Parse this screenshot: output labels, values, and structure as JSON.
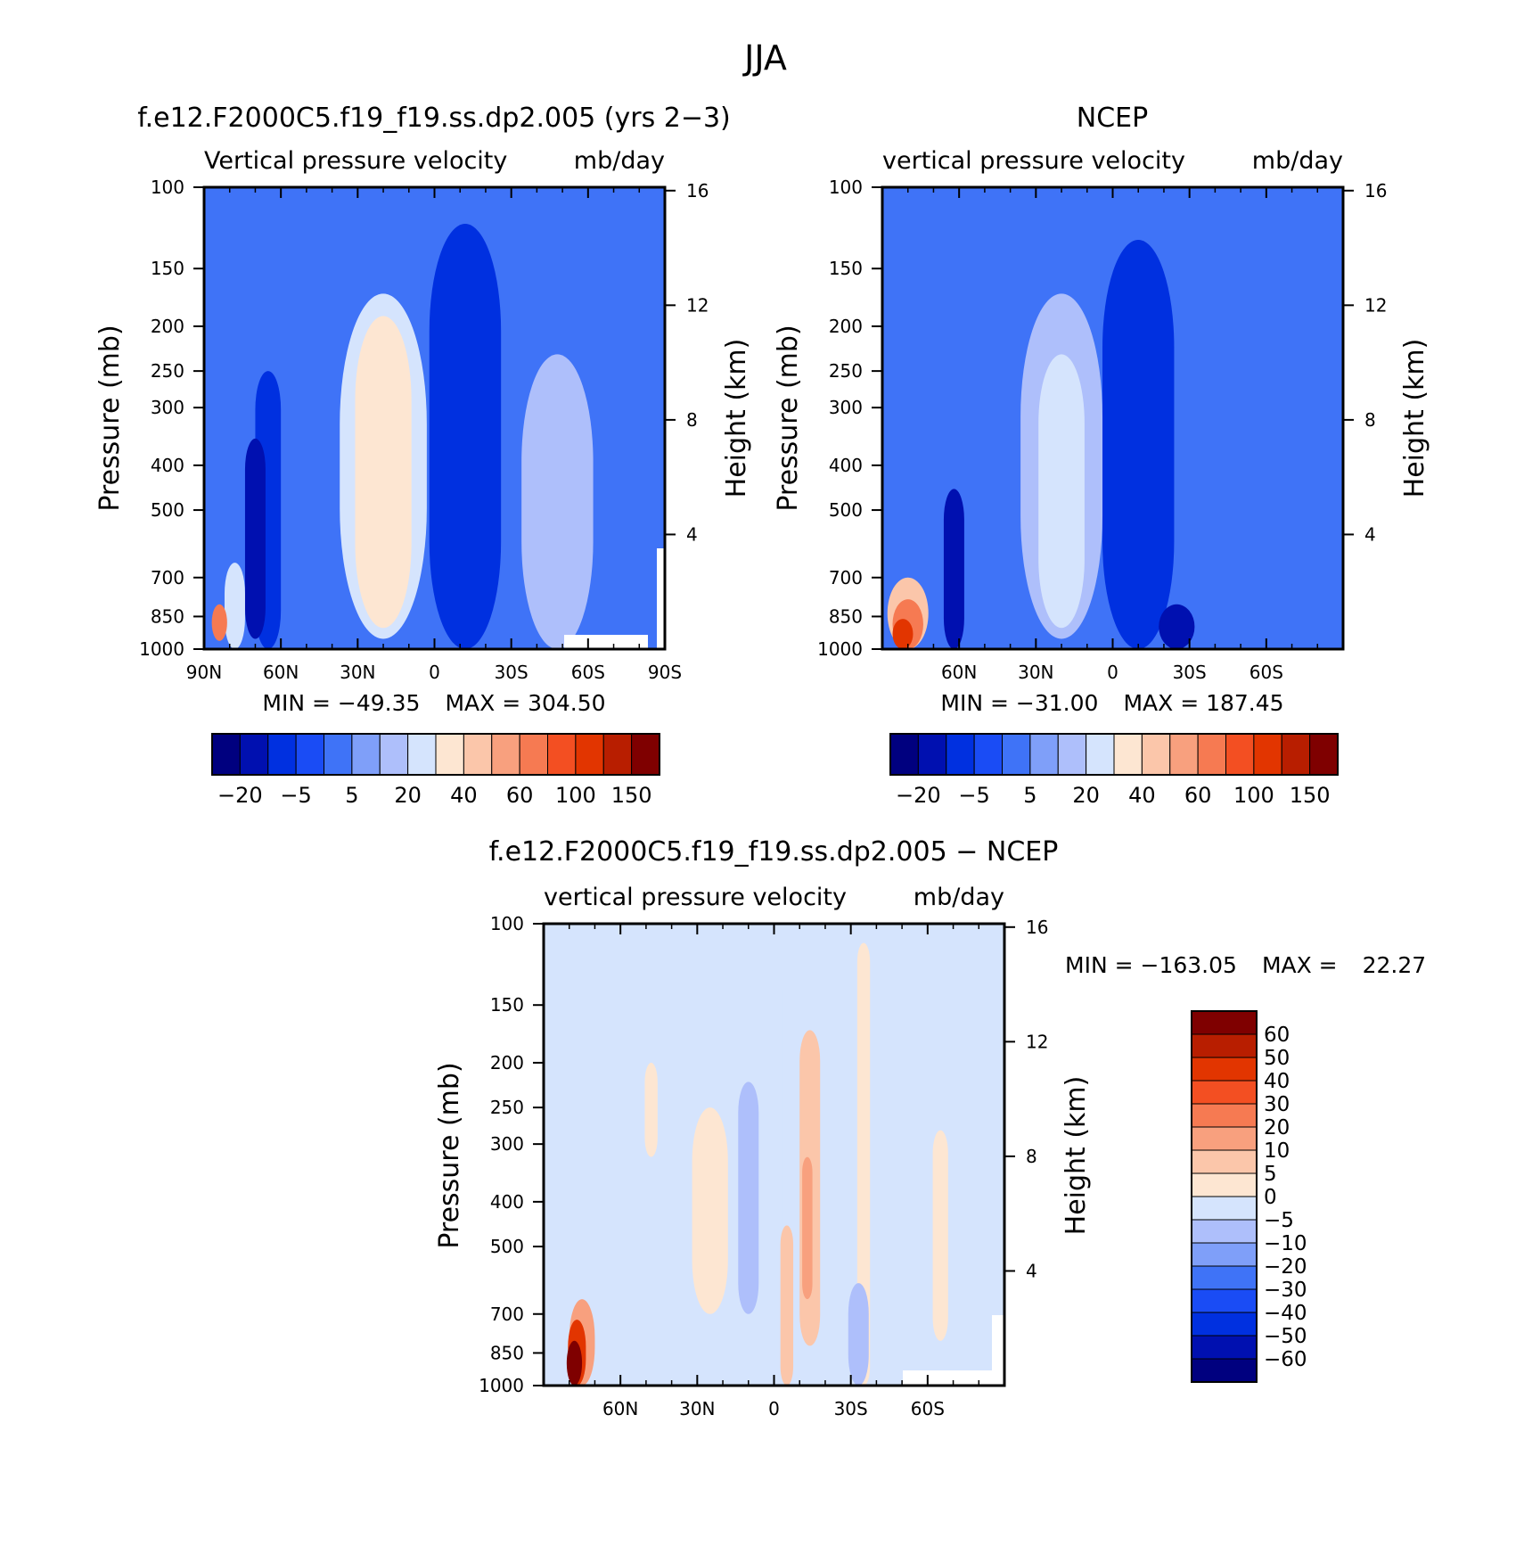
{
  "figure_title": "JJA",
  "chart_data": [
    {
      "type": "heatmap",
      "title": "f.e12.F2000C5.f19_f19.ss.dp2.005 (yrs 2−3)",
      "subtitle_left": "Vertical pressure velocity",
      "subtitle_right": "mb/day",
      "ylabel": "Pressure (mb)",
      "ylabel_right": "Height (km)",
      "x_ticks": [
        "90N",
        "60N",
        "30N",
        "0",
        "30S",
        "60S",
        "90S"
      ],
      "y_ticks": [
        "100",
        "150",
        "200",
        "250",
        "300",
        "400",
        "500",
        "700",
        "850",
        "1000"
      ],
      "y_ticks_right": [
        "16",
        "12",
        "8",
        "4"
      ],
      "stats": {
        "min_label": "MIN = ",
        "min": "−49.35",
        "max_label": "MAX = ",
        "max": "304.50"
      },
      "colorbar_labels": [
        "−20",
        "−5",
        "5",
        "20",
        "40",
        "60",
        "100",
        "150"
      ],
      "features": [
        {
          "lat": -12,
          "plo": 200,
          "phi": 950,
          "width": 12,
          "level": 0
        },
        {
          "lat": -12,
          "plo": 170,
          "phi": 980,
          "width": 20,
          "level": 1
        },
        {
          "lat": -12,
          "plo": 120,
          "phi": 1000,
          "width": 28,
          "level": 2
        },
        {
          "lat": 20,
          "plo": 170,
          "phi": 950,
          "width": 34,
          "level": 7
        },
        {
          "lat": 20,
          "plo": 190,
          "phi": 900,
          "width": 22,
          "level": 8
        },
        {
          "lat": -48,
          "plo": 230,
          "phi": 1000,
          "width": 28,
          "level": 6
        },
        {
          "lat": 65,
          "plo": 250,
          "phi": 1000,
          "width": 10,
          "level": 2
        },
        {
          "lat": 70,
          "plo": 350,
          "phi": 950,
          "width": 8,
          "level": 1
        },
        {
          "lat": 78,
          "plo": 650,
          "phi": 1000,
          "width": 8,
          "level": 7
        },
        {
          "lat": 84,
          "plo": 800,
          "phi": 960,
          "width": 6,
          "level": 11
        }
      ]
    },
    {
      "type": "heatmap",
      "title": "NCEP",
      "subtitle_left": "vertical pressure velocity",
      "subtitle_right": "mb/day",
      "ylabel": "Pressure (mb)",
      "ylabel_right": "Height (km)",
      "x_ticks": [
        "60N",
        "30N",
        "0",
        "30S",
        "60S"
      ],
      "y_ticks": [
        "100",
        "150",
        "200",
        "250",
        "300",
        "400",
        "500",
        "700",
        "850",
        "1000"
      ],
      "y_ticks_right": [
        "16",
        "12",
        "8",
        "4"
      ],
      "stats": {
        "min_label": "MIN = ",
        "min": "−31.00",
        "max_label": "MAX = ",
        "max": "187.45"
      },
      "colorbar_labels": [
        "−20",
        "−5",
        "5",
        "20",
        "40",
        "60",
        "100",
        "150"
      ],
      "features": [
        {
          "lat": -10,
          "plo": 230,
          "phi": 900,
          "width": 10,
          "level": 0
        },
        {
          "lat": -10,
          "plo": 170,
          "phi": 1000,
          "width": 20,
          "level": 1
        },
        {
          "lat": -10,
          "plo": 130,
          "phi": 1000,
          "width": 28,
          "level": 2
        },
        {
          "lat": 20,
          "plo": 170,
          "phi": 950,
          "width": 32,
          "level": 6
        },
        {
          "lat": 20,
          "plo": 230,
          "phi": 900,
          "width": 18,
          "level": 7
        },
        {
          "lat": -25,
          "plo": 800,
          "phi": 1000,
          "width": 14,
          "level": 1
        },
        {
          "lat": 62,
          "plo": 450,
          "phi": 1000,
          "width": 8,
          "level": 1
        },
        {
          "lat": 80,
          "plo": 700,
          "phi": 1000,
          "width": 16,
          "level": 9
        },
        {
          "lat": 80,
          "plo": 780,
          "phi": 1000,
          "width": 12,
          "level": 11
        },
        {
          "lat": 82,
          "plo": 860,
          "phi": 1000,
          "width": 8,
          "level": 13
        }
      ]
    },
    {
      "type": "heatmap",
      "title": "f.e12.F2000C5.f19_f19.ss.dp2.005 − NCEP",
      "subtitle_left": "vertical pressure velocity",
      "subtitle_right": "mb/day",
      "ylabel": "Pressure (mb)",
      "ylabel_right": "Height (km)",
      "x_ticks": [
        "60N",
        "30N",
        "0",
        "30S",
        "60S"
      ],
      "y_ticks": [
        "100",
        "150",
        "200",
        "250",
        "300",
        "400",
        "500",
        "700",
        "850",
        "1000"
      ],
      "y_ticks_right": [
        "16",
        "12",
        "8",
        "4"
      ],
      "stats": {
        "min_label": "MIN = ",
        "min": "−163.05",
        "max_label": "MAX = ",
        "max": "22.27"
      },
      "colorbar_labels": [
        "60",
        "50",
        "40",
        "30",
        "20",
        "10",
        "5",
        "0",
        "−5",
        "−10",
        "−20",
        "−30",
        "−40",
        "−50",
        "−60"
      ],
      "features": [
        {
          "lat": 3,
          "plo": 110,
          "phi": 950,
          "width": 12,
          "level": 7
        },
        {
          "lat": 10,
          "plo": 220,
          "phi": 700,
          "width": 8,
          "level": 6
        },
        {
          "lat": 25,
          "plo": 250,
          "phi": 700,
          "width": 14,
          "level": 8
        },
        {
          "lat": -35,
          "plo": 110,
          "phi": 1000,
          "width": 5,
          "level": 8
        },
        {
          "lat": -33,
          "plo": 600,
          "phi": 1000,
          "width": 8,
          "level": 6
        },
        {
          "lat": -14,
          "plo": 170,
          "phi": 820,
          "width": 8,
          "level": 9
        },
        {
          "lat": -13,
          "plo": 320,
          "phi": 650,
          "width": 4,
          "level": 10
        },
        {
          "lat": -5,
          "plo": 450,
          "phi": 1000,
          "width": 5,
          "level": 9
        },
        {
          "lat": 48,
          "plo": 200,
          "phi": 320,
          "width": 5,
          "level": 8
        },
        {
          "lat": -65,
          "plo": 280,
          "phi": 800,
          "width": 6,
          "level": 8
        },
        {
          "lat": 75,
          "plo": 650,
          "phi": 1000,
          "width": 10,
          "level": 10
        },
        {
          "lat": 77,
          "plo": 720,
          "phi": 1000,
          "width": 7,
          "level": 13
        },
        {
          "lat": 78,
          "plo": 800,
          "phi": 1000,
          "width": 6,
          "level": 15
        }
      ]
    }
  ],
  "colors": {
    "diverging": [
      "#00007f",
      "#0010b0",
      "#0030e0",
      "#1a4cf5",
      "#3f73f7",
      "#7f9ff9",
      "#aebffb",
      "#d5e4fd",
      "#fde6d2",
      "#fbc6aa",
      "#f8a07e",
      "#f67a52",
      "#f34f22",
      "#e23500",
      "#b81e00",
      "#7f0000"
    ],
    "bg_top_left": "#3f73f7",
    "bg_top_right": "#3f73f7",
    "bg_diff": "#d5e4fd"
  }
}
